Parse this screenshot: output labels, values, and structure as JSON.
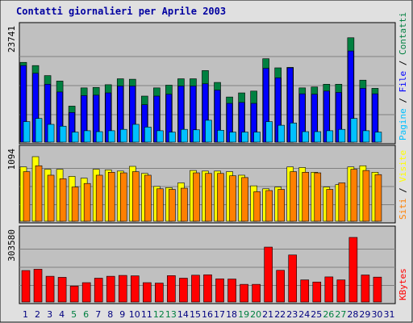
{
  "title": "Contatti giornalieri per Aprile 2003",
  "chart_data": [
    {
      "type": "bar",
      "title": "",
      "ylabel": [
        "Pagine",
        "File",
        "Contatti"
      ],
      "ytick": "23741",
      "categories": [
        "1",
        "2",
        "3",
        "4",
        "5",
        "6",
        "7",
        "8",
        "9",
        "10",
        "11",
        "12",
        "13",
        "14",
        "15",
        "16",
        "17",
        "18",
        "19",
        "20",
        "21",
        "22",
        "23",
        "24",
        "25",
        "26",
        "27",
        "28",
        "29",
        "30",
        "31"
      ],
      "ylim": [
        0,
        23741
      ],
      "series": [
        {
          "name": "Contatti",
          "color": "#008040",
          "values": [
            17500,
            16800,
            14600,
            13400,
            7900,
            11900,
            12000,
            12600,
            13900,
            13800,
            10100,
            11900,
            12500,
            13900,
            13900,
            15700,
            13100,
            9900,
            10800,
            11200,
            18300,
            16300,
            16400,
            11900,
            12100,
            12700,
            12700,
            22900,
            13600,
            11800,
            0
          ]
        },
        {
          "name": "File",
          "color": "#0000ff",
          "values": [
            16800,
            15100,
            12700,
            11000,
            6500,
            10200,
            10300,
            10800,
            12300,
            12300,
            8200,
            10100,
            10500,
            12300,
            12300,
            12800,
            11400,
            8500,
            8700,
            8500,
            16200,
            14100,
            16300,
            10600,
            10500,
            11200,
            10900,
            20000,
            11800,
            10600,
            0
          ]
        },
        {
          "name": "Pagine",
          "color": "#00c0ff",
          "values": [
            4500,
            5200,
            3900,
            3500,
            2200,
            2500,
            2300,
            2500,
            2800,
            3900,
            3300,
            2500,
            2200,
            2800,
            2700,
            4800,
            2600,
            2200,
            2200,
            2200,
            4500,
            3700,
            4200,
            2300,
            2300,
            2500,
            2800,
            5200,
            2500,
            2200,
            0
          ]
        }
      ]
    },
    {
      "type": "bar",
      "title": "",
      "ylabel": [
        "Siti",
        "Visite"
      ],
      "ytick": "1094",
      "categories": [
        "1",
        "2",
        "3",
        "4",
        "5",
        "6",
        "7",
        "8",
        "9",
        "10",
        "11",
        "12",
        "13",
        "14",
        "15",
        "16",
        "17",
        "18",
        "19",
        "20",
        "21",
        "22",
        "23",
        "24",
        "25",
        "26",
        "27",
        "28",
        "29",
        "30",
        "31"
      ],
      "ylim": [
        0,
        1094
      ],
      "series": [
        {
          "name": "Visite",
          "color": "#ffff00",
          "values": [
            920,
            1094,
            880,
            880,
            760,
            730,
            880,
            870,
            850,
            930,
            810,
            590,
            570,
            650,
            860,
            850,
            850,
            840,
            780,
            600,
            550,
            580,
            920,
            910,
            830,
            580,
            620,
            920,
            940,
            830,
            0
          ]
        },
        {
          "name": "Siti",
          "color": "#ff8000",
          "values": [
            840,
            940,
            780,
            720,
            580,
            640,
            780,
            830,
            820,
            840,
            780,
            550,
            540,
            560,
            820,
            810,
            810,
            770,
            740,
            500,
            520,
            540,
            840,
            830,
            820,
            540,
            650,
            880,
            860,
            790,
            0
          ]
        }
      ]
    },
    {
      "type": "bar",
      "title": "",
      "ylabel": [
        "KBytes"
      ],
      "ytick": "303580",
      "categories": [
        "1",
        "2",
        "3",
        "4",
        "5",
        "6",
        "7",
        "8",
        "9",
        "10",
        "11",
        "12",
        "13",
        "14",
        "15",
        "16",
        "17",
        "18",
        "19",
        "20",
        "21",
        "22",
        "23",
        "24",
        "25",
        "26",
        "27",
        "28",
        "29",
        "30",
        "31"
      ],
      "ylim": [
        0,
        303580
      ],
      "series": [
        {
          "name": "KBytes",
          "color": "#ff0000",
          "values": [
            148000,
            154000,
            121000,
            116000,
            75000,
            91000,
            112000,
            121000,
            125000,
            123000,
            91000,
            89000,
            124000,
            112000,
            126000,
            128000,
            109000,
            108000,
            83000,
            83000,
            258000,
            149000,
            221000,
            104000,
            94000,
            118000,
            104000,
            303580,
            127000,
            117000,
            0
          ]
        }
      ]
    }
  ],
  "colors": {
    "title": "#0000a0",
    "weekend_label": "#008040",
    "weekday_label": "#000080",
    "plot_bg": "#c0c0c0",
    "page_bg": "#e0e0e0"
  },
  "weekend_days": [
    5,
    6,
    12,
    13,
    19,
    20,
    26,
    27
  ]
}
